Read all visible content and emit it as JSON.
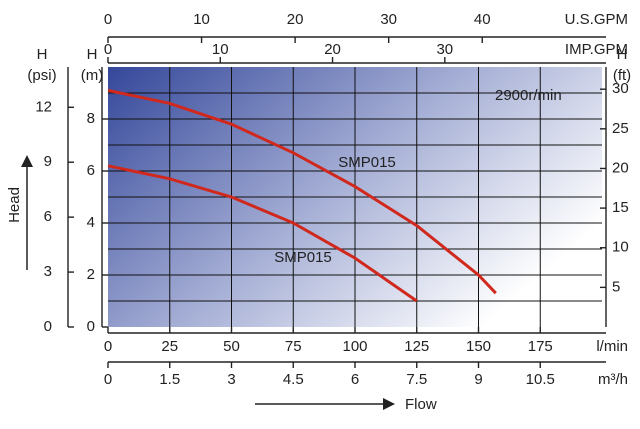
{
  "chart_data": {
    "type": "line",
    "xlim": [
      0,
      200
    ],
    "xticks": [
      0,
      25,
      50,
      75,
      100,
      125,
      150,
      175
    ],
    "x_label": "l/min",
    "ylim": [
      0,
      10
    ],
    "yticks": [
      0,
      2,
      4,
      6,
      8
    ],
    "y_minor_ticks": [
      1,
      3,
      5,
      7,
      9
    ],
    "y_label": [
      "H",
      "(m)"
    ],
    "grid": true,
    "axis_m3h": {
      "label": "m³/h",
      "lim": [
        0,
        12
      ],
      "ticks": [
        0,
        1.5,
        3,
        4.5,
        6,
        7.5,
        9,
        10.5
      ]
    },
    "axis_usgpm": {
      "label": "U.S.GPM",
      "lim": [
        0,
        52.8
      ],
      "ticks": [
        0,
        10,
        20,
        30,
        40
      ]
    },
    "axis_impgpm": {
      "label": "IMP.GPM",
      "lim": [
        0,
        44
      ],
      "ticks": [
        0,
        10,
        20,
        30
      ]
    },
    "axis_psi": {
      "label": [
        "H",
        "(psi)"
      ],
      "lim": [
        0,
        14.2
      ],
      "ticks": [
        0,
        3,
        6,
        9,
        12
      ]
    },
    "axis_ft": {
      "label": [
        "H",
        "(ft)"
      ],
      "lim": [
        0,
        32.8
      ],
      "ticks": [
        5,
        10,
        15,
        20,
        25,
        30
      ]
    },
    "head_label": "Head",
    "flow_label": "Flow",
    "speed_label": "2900r/min",
    "series": [
      {
        "name": "SMP015",
        "color": "#d0281c",
        "x": [
          0,
          25,
          50,
          75,
          100,
          125,
          150,
          157
        ],
        "values": [
          9.1,
          8.6,
          7.8,
          6.7,
          5.4,
          3.9,
          2.0,
          1.3
        ]
      },
      {
        "name": "SMP015",
        "color": "#d0281c",
        "x": [
          0,
          25,
          50,
          75,
          100,
          125
        ],
        "values": [
          6.2,
          5.7,
          5.0,
          4.0,
          2.65,
          1.0
        ]
      }
    ]
  }
}
